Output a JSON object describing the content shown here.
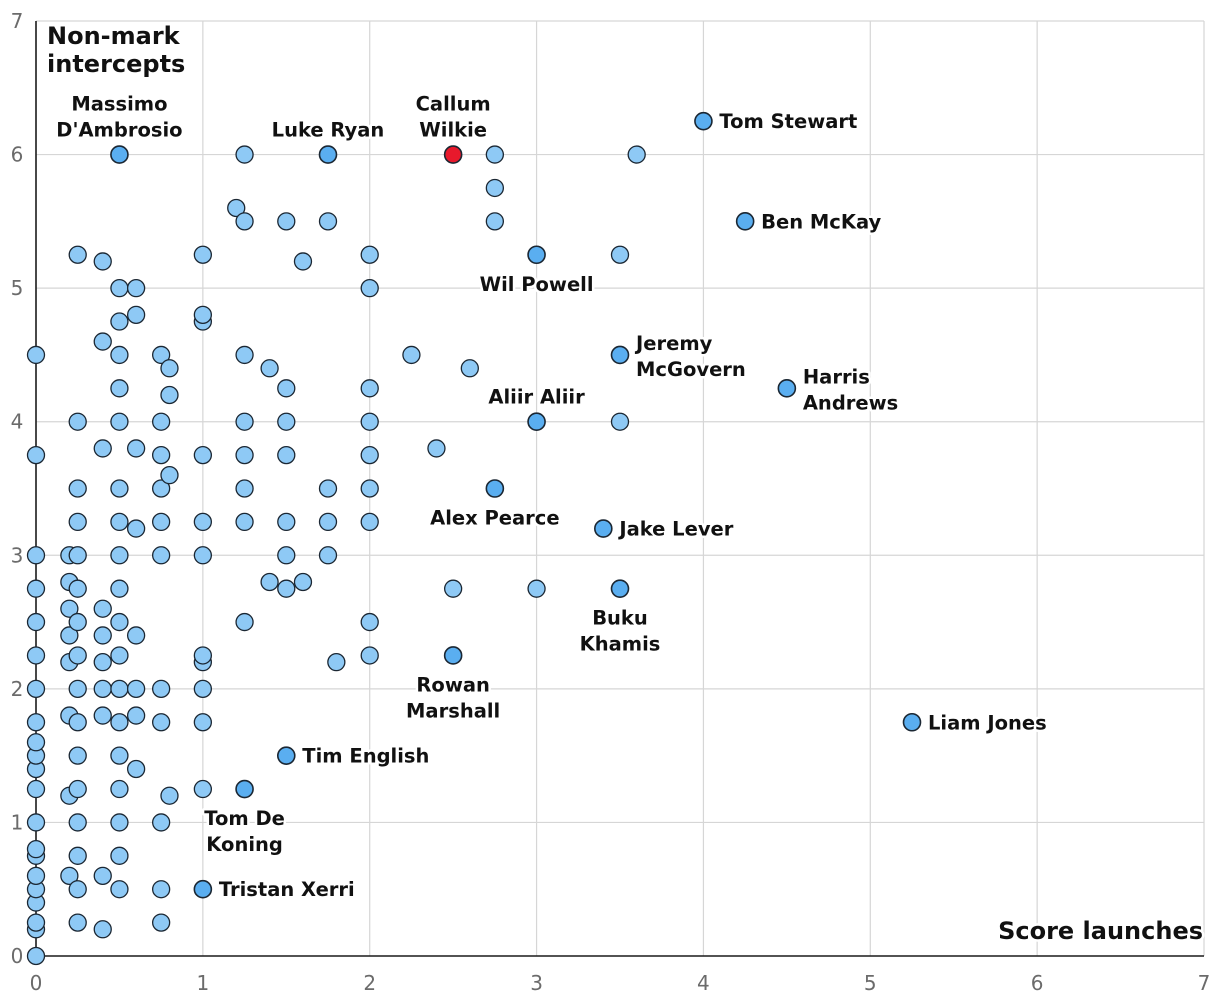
{
  "chart_data": {
    "type": "scatter",
    "title": "",
    "xlabel": "Score launches",
    "ylabel_lines": [
      "Non-mark",
      "intercepts"
    ],
    "xlim": [
      0,
      7
    ],
    "ylim": [
      0,
      7
    ],
    "x_ticks": [
      "0",
      "1",
      "2",
      "3",
      "4",
      "5",
      "6",
      "7"
    ],
    "y_ticks": [
      "0",
      "1",
      "2",
      "3",
      "4",
      "5",
      "6",
      "7"
    ],
    "colors": {
      "background_point": "#8ec9f5",
      "labelled_point": "#5aaef0",
      "highlight_point": "#e8192c",
      "point_outline": "#1b2733"
    },
    "labelled_points": [
      {
        "name": "Massimo D'Ambrosio",
        "lines": [
          "Massimo",
          "D'Ambrosio"
        ],
        "x": 0.5,
        "y": 6.0,
        "placement": "above"
      },
      {
        "name": "Luke Ryan",
        "lines": [
          "Luke Ryan"
        ],
        "x": 1.75,
        "y": 6.0,
        "placement": "above"
      },
      {
        "name": "Callum Wilkie",
        "lines": [
          "Callum",
          "Wilkie"
        ],
        "x": 2.5,
        "y": 6.0,
        "placement": "above",
        "highlight": true
      },
      {
        "name": "Tom Stewart",
        "lines": [
          "Tom Stewart"
        ],
        "x": 4.0,
        "y": 6.25,
        "placement": "right"
      },
      {
        "name": "Ben McKay",
        "lines": [
          "Ben McKay"
        ],
        "x": 4.25,
        "y": 5.5,
        "placement": "right"
      },
      {
        "name": "Wil Powell",
        "lines": [
          "Wil Powell"
        ],
        "x": 3.0,
        "y": 5.25,
        "placement": "below"
      },
      {
        "name": "Jeremy McGovern",
        "lines": [
          "Jeremy",
          "McGovern"
        ],
        "x": 3.5,
        "y": 4.5,
        "placement": "right"
      },
      {
        "name": "Harris Andrews",
        "lines": [
          "Harris",
          "Andrews"
        ],
        "x": 4.5,
        "y": 4.25,
        "placement": "right"
      },
      {
        "name": "Aliir Aliir",
        "lines": [
          "Aliir Aliir"
        ],
        "x": 3.0,
        "y": 4.0,
        "placement": "above"
      },
      {
        "name": "Alex Pearce",
        "lines": [
          "Alex Pearce"
        ],
        "x": 2.75,
        "y": 3.5,
        "placement": "below"
      },
      {
        "name": "Jake Lever",
        "lines": [
          "Jake Lever"
        ],
        "x": 3.4,
        "y": 3.2,
        "placement": "right"
      },
      {
        "name": "Buku Khamis",
        "lines": [
          "Buku",
          "Khamis"
        ],
        "x": 3.5,
        "y": 2.75,
        "placement": "below"
      },
      {
        "name": "Rowan Marshall",
        "lines": [
          "Rowan",
          "Marshall"
        ],
        "x": 2.5,
        "y": 2.25,
        "placement": "below"
      },
      {
        "name": "Liam Jones",
        "lines": [
          "Liam Jones"
        ],
        "x": 5.25,
        "y": 1.75,
        "placement": "right"
      },
      {
        "name": "Tim English",
        "lines": [
          "Tim English"
        ],
        "x": 1.5,
        "y": 1.5,
        "placement": "right"
      },
      {
        "name": "Tom De Koning",
        "lines": [
          "Tom De",
          "Koning"
        ],
        "x": 1.25,
        "y": 1.25,
        "placement": "below"
      },
      {
        "name": "Tristan Xerri",
        "lines": [
          "Tristan Xerri"
        ],
        "x": 1.0,
        "y": 0.5,
        "placement": "right"
      }
    ],
    "other_points": [
      [
        0,
        0
      ],
      [
        0,
        0.2
      ],
      [
        0,
        0.25
      ],
      [
        0,
        0.4
      ],
      [
        0,
        0.5
      ],
      [
        0,
        0.6
      ],
      [
        0,
        0.75
      ],
      [
        0,
        0.8
      ],
      [
        0,
        1.0
      ],
      [
        0,
        1.25
      ],
      [
        0,
        1.4
      ],
      [
        0,
        1.5
      ],
      [
        0,
        1.6
      ],
      [
        0,
        1.75
      ],
      [
        0,
        2.0
      ],
      [
        0,
        2.25
      ],
      [
        0,
        2.5
      ],
      [
        0,
        2.75
      ],
      [
        0,
        3.0
      ],
      [
        0,
        3.75
      ],
      [
        0,
        4.5
      ],
      [
        0.2,
        0.6
      ],
      [
        0.2,
        1.2
      ],
      [
        0.2,
        1.8
      ],
      [
        0.2,
        2.2
      ],
      [
        0.2,
        2.4
      ],
      [
        0.2,
        2.6
      ],
      [
        0.2,
        2.8
      ],
      [
        0.2,
        3.0
      ],
      [
        0.25,
        0.25
      ],
      [
        0.25,
        0.5
      ],
      [
        0.25,
        0.75
      ],
      [
        0.25,
        1.0
      ],
      [
        0.25,
        1.25
      ],
      [
        0.25,
        1.5
      ],
      [
        0.25,
        1.75
      ],
      [
        0.25,
        2.0
      ],
      [
        0.25,
        2.25
      ],
      [
        0.25,
        2.5
      ],
      [
        0.25,
        2.75
      ],
      [
        0.25,
        3.0
      ],
      [
        0.25,
        3.25
      ],
      [
        0.25,
        3.5
      ],
      [
        0.25,
        4.0
      ],
      [
        0.25,
        5.25
      ],
      [
        0.4,
        0.2
      ],
      [
        0.4,
        0.6
      ],
      [
        0.4,
        1.8
      ],
      [
        0.4,
        2.0
      ],
      [
        0.4,
        2.2
      ],
      [
        0.4,
        2.4
      ],
      [
        0.4,
        2.6
      ],
      [
        0.4,
        3.8
      ],
      [
        0.4,
        4.6
      ],
      [
        0.4,
        5.2
      ],
      [
        0.5,
        0.5
      ],
      [
        0.5,
        0.75
      ],
      [
        0.5,
        1.0
      ],
      [
        0.5,
        1.25
      ],
      [
        0.5,
        1.5
      ],
      [
        0.5,
        1.75
      ],
      [
        0.5,
        2.0
      ],
      [
        0.5,
        2.25
      ],
      [
        0.5,
        2.5
      ],
      [
        0.5,
        2.75
      ],
      [
        0.5,
        3.0
      ],
      [
        0.5,
        3.25
      ],
      [
        0.5,
        3.5
      ],
      [
        0.5,
        4.0
      ],
      [
        0.5,
        4.25
      ],
      [
        0.5,
        4.5
      ],
      [
        0.5,
        4.75
      ],
      [
        0.5,
        5.0
      ],
      [
        0.6,
        1.4
      ],
      [
        0.6,
        1.8
      ],
      [
        0.6,
        2.0
      ],
      [
        0.6,
        2.4
      ],
      [
        0.6,
        3.2
      ],
      [
        0.6,
        3.8
      ],
      [
        0.6,
        4.8
      ],
      [
        0.6,
        5.0
      ],
      [
        0.75,
        0.25
      ],
      [
        0.75,
        0.5
      ],
      [
        0.75,
        1.0
      ],
      [
        0.75,
        1.75
      ],
      [
        0.75,
        2.0
      ],
      [
        0.75,
        3.0
      ],
      [
        0.75,
        3.25
      ],
      [
        0.75,
        3.5
      ],
      [
        0.75,
        3.75
      ],
      [
        0.75,
        4.0
      ],
      [
        0.75,
        4.5
      ],
      [
        0.8,
        1.2
      ],
      [
        0.8,
        3.6
      ],
      [
        0.8,
        4.2
      ],
      [
        0.8,
        4.4
      ],
      [
        1.0,
        1.25
      ],
      [
        1.0,
        1.75
      ],
      [
        1.0,
        2.0
      ],
      [
        1.0,
        2.2
      ],
      [
        1.0,
        2.25
      ],
      [
        1.0,
        3.0
      ],
      [
        1.0,
        3.25
      ],
      [
        1.0,
        3.75
      ],
      [
        1.0,
        4.75
      ],
      [
        1.0,
        4.8
      ],
      [
        1.0,
        5.25
      ],
      [
        1.2,
        5.6
      ],
      [
        1.25,
        2.5
      ],
      [
        1.25,
        3.25
      ],
      [
        1.25,
        3.5
      ],
      [
        1.25,
        3.75
      ],
      [
        1.25,
        4.0
      ],
      [
        1.25,
        4.5
      ],
      [
        1.25,
        5.5
      ],
      [
        1.25,
        6.0
      ],
      [
        1.4,
        2.8
      ],
      [
        1.4,
        4.4
      ],
      [
        1.5,
        2.75
      ],
      [
        1.5,
        3.0
      ],
      [
        1.5,
        3.25
      ],
      [
        1.5,
        3.75
      ],
      [
        1.5,
        4.0
      ],
      [
        1.5,
        4.25
      ],
      [
        1.5,
        5.5
      ],
      [
        1.6,
        2.8
      ],
      [
        1.6,
        5.2
      ],
      [
        1.75,
        3.0
      ],
      [
        1.75,
        3.25
      ],
      [
        1.75,
        3.5
      ],
      [
        1.75,
        5.5
      ],
      [
        1.8,
        2.2
      ],
      [
        2.0,
        2.25
      ],
      [
        2.0,
        2.5
      ],
      [
        2.0,
        3.25
      ],
      [
        2.0,
        3.5
      ],
      [
        2.0,
        3.75
      ],
      [
        2.0,
        4.0
      ],
      [
        2.0,
        4.25
      ],
      [
        2.0,
        5.0
      ],
      [
        2.0,
        5.25
      ],
      [
        2.25,
        4.5
      ],
      [
        2.4,
        3.8
      ],
      [
        2.5,
        2.75
      ],
      [
        2.6,
        4.4
      ],
      [
        2.75,
        5.5
      ],
      [
        2.75,
        5.75
      ],
      [
        2.75,
        6.0
      ],
      [
        3.0,
        2.75
      ],
      [
        3.5,
        4.0
      ],
      [
        3.5,
        5.25
      ],
      [
        3.6,
        6.0
      ]
    ]
  }
}
